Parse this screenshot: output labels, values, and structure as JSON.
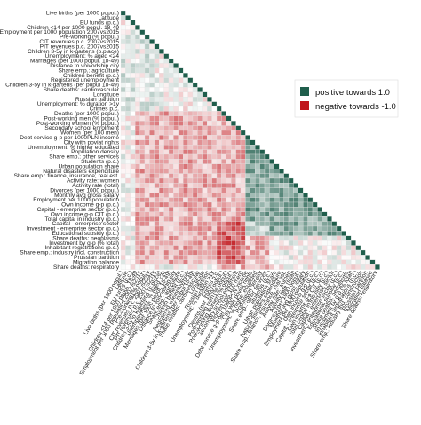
{
  "chart_data": {
    "type": "heatmap",
    "title": "",
    "xlabel": "",
    "ylabel": "",
    "variables": [
      "Live births (per 1000 popul.)",
      "Latitude",
      "EU funds (p.c.)",
      "Children <14 per 1000 popul. 18-49",
      "Employment per 1000 population 2007vs2015",
      "Pre-working (% popul.)",
      "CIT revenues p.c. 2007vs2015",
      "PIT revenues p.c. 2007vs2015",
      "Children 3-5y in k-gartens (p.place)",
      "Unemployment: % aged <24",
      "Marriages (per 1000 popul. 18-49)",
      "Distance to voivodship city",
      "Share emp.: agriculture",
      "Children benefit (p.c.)",
      "Registered unemployment",
      "Children 3-5y in k-gartens (per popul 18-49)",
      "Share deaths: cardiovascular",
      "Longitude",
      "Russian partition",
      "Unemployment: % duration >1y",
      "Crimes p.c.",
      "Deaths (per 1000 popul.)",
      "Post-working men (% popul.)",
      "Post-working women (% popul.)",
      "Secondary school enrolment",
      "Women (per 100 men)",
      "Debt service g-p per 1000PLN income",
      "City with poviat rights",
      "Unemployment: % higher educated",
      "Population density",
      "Share emp.: other services",
      "Students (p.c.)",
      "Urban population share",
      "Natural disasters expenditure",
      "Share emp.: finance, insurance, real est.",
      "Activity rate: women",
      "Activity rate (total)",
      "Divorces (per 1000 popul.)",
      "Monthly avg gross salary",
      "Employment per 1000 population",
      "Own income g-p (p.c.)",
      "Capital - enterprise sector (p.c.)",
      "Own income g-p CIT (p.c.)",
      "Total capital in industry (p.c.)",
      "Capital - enterprise sector",
      "Investment - enterprise sector (p.c.)",
      "Educational subsidy (p.c.)",
      "Share deaths: neoplasms",
      "Investment by g-p (% total)",
      "Inhabitant registrations (p.c.)",
      "Share emp.: industry incl. construction",
      "Prussian partition",
      "Migration balance",
      "Share deaths: respiratory"
    ],
    "value_range": [
      -1,
      1
    ],
    "legend": {
      "position": "right",
      "entries": [
        {
          "label": "positive towards 1.0",
          "color": "#1f5e4c"
        },
        {
          "label": "negative towards -1.0",
          "color": "#c0151b"
        }
      ]
    },
    "colors": {
      "positive": "#1f5e4c",
      "negative": "#c0151b",
      "neutral": "#ffffff",
      "grid": "#e3e3e3"
    },
    "matrix_layout": "lower-triangle",
    "note_values": "cell values estimated (correlation coefficients)"
  }
}
